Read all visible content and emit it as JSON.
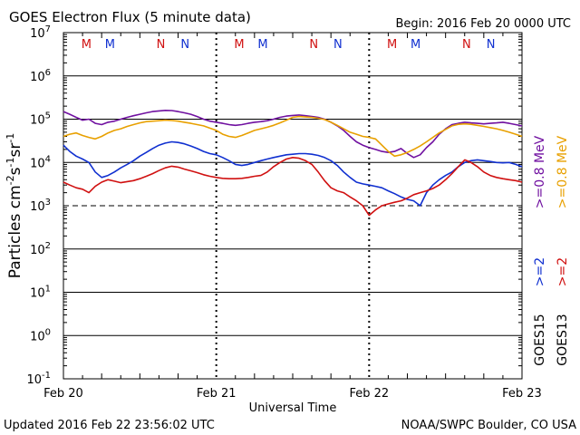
{
  "chart_data": {
    "type": "line",
    "title": "GOES Electron Flux (5 minute data)",
    "begin_label": "Begin: 2016 Feb 20 0000 UTC",
    "xlabel": "Universal Time",
    "ylabel": {
      "base": "Particles cm",
      "exp1": "-2",
      "mid1": "s",
      "exp2": "-1",
      "mid2": "sr",
      "exp3": "-1"
    },
    "x_ticks": [
      "Feb 20",
      "Feb 21",
      "Feb 22",
      "Feb 23"
    ],
    "xlim_hours": [
      0,
      72
    ],
    "y_scale": "log",
    "ylim": [
      0.1,
      10000000
    ],
    "y_tick_exponents": [
      "7",
      "6",
      "5",
      "4",
      "3",
      "2",
      "1",
      "0",
      "-1"
    ],
    "threshold": 1000,
    "footer_left": "Updated 2016 Feb 22 23:56:02 UTC",
    "footer_right": "NOAA/SWPC Boulder, CO USA",
    "mn_markers": [
      {
        "label": "M",
        "hour": 3.6,
        "color": "#d01010"
      },
      {
        "label": "M",
        "hour": 7.3,
        "color": "#1030d0"
      },
      {
        "label": "N",
        "hour": 15.3,
        "color": "#d01010"
      },
      {
        "label": "N",
        "hour": 19.1,
        "color": "#1030d0"
      },
      {
        "label": "M",
        "hour": 27.6,
        "color": "#d01010"
      },
      {
        "label": "M",
        "hour": 31.3,
        "color": "#1030d0"
      },
      {
        "label": "N",
        "hour": 39.3,
        "color": "#d01010"
      },
      {
        "label": "N",
        "hour": 43.1,
        "color": "#1030d0"
      },
      {
        "label": "M",
        "hour": 51.6,
        "color": "#d01010"
      },
      {
        "label": "M",
        "hour": 55.3,
        "color": "#1030d0"
      },
      {
        "label": "N",
        "hour": 63.3,
        "color": "#d01010"
      },
      {
        "label": "N",
        "hour": 67.1,
        "color": "#1030d0"
      }
    ],
    "legend": [
      {
        "text": ">=0.8  MeV",
        "color": "#7010a0",
        "group": "energy"
      },
      {
        "text": ">=0.8  MeV",
        "color": "#e8a000",
        "group": "energy"
      },
      {
        "text": ">=2",
        "color": "#1030d0",
        "group": "energy"
      },
      {
        "text": ">=2",
        "color": "#d01010",
        "group": "energy"
      },
      {
        "text": "GOES15",
        "color": "#000000",
        "group": "sat"
      },
      {
        "text": "GOES13",
        "color": "#000000",
        "group": "sat"
      }
    ],
    "series": [
      {
        "color": "#7010a0",
        "x": [
          0,
          1,
          2,
          3,
          4,
          5,
          6,
          7,
          8,
          9,
          10,
          11,
          12,
          13,
          14,
          15,
          16,
          17,
          18,
          19,
          20,
          21,
          22,
          23,
          24,
          25,
          26,
          27,
          28,
          29,
          30,
          31,
          32,
          33,
          34,
          35,
          36,
          37,
          38,
          39,
          40,
          41,
          42,
          43,
          44,
          45,
          46,
          47,
          48,
          49,
          50,
          51,
          52,
          53,
          54,
          55,
          56,
          57,
          58,
          59,
          60,
          61,
          62,
          63,
          64,
          65,
          66,
          67,
          68,
          69,
          70,
          71,
          72
        ],
        "y": [
          150000,
          130000,
          110000,
          95000,
          100000,
          80000,
          75000,
          85000,
          90000,
          100000,
          110000,
          120000,
          130000,
          140000,
          150000,
          155000,
          160000,
          158000,
          150000,
          140000,
          130000,
          115000,
          100000,
          90000,
          85000,
          80000,
          75000,
          72000,
          75000,
          80000,
          85000,
          88000,
          92000,
          100000,
          110000,
          118000,
          122000,
          125000,
          120000,
          115000,
          110000,
          100000,
          85000,
          70000,
          55000,
          40000,
          30000,
          25000,
          22000,
          20000,
          18000,
          17000,
          18000,
          21000,
          16000,
          13000,
          15000,
          22000,
          30000,
          45000,
          60000,
          75000,
          80000,
          85000,
          82000,
          80000,
          78000,
          80000,
          82000,
          85000,
          80000,
          75000,
          70000
        ]
      },
      {
        "color": "#e8a000",
        "x": [
          0,
          1,
          2,
          3,
          4,
          5,
          6,
          7,
          8,
          9,
          10,
          11,
          12,
          13,
          14,
          15,
          16,
          17,
          18,
          19,
          20,
          21,
          22,
          23,
          24,
          25,
          26,
          27,
          28,
          29,
          30,
          31,
          32,
          33,
          34,
          35,
          36,
          37,
          38,
          39,
          40,
          41,
          42,
          43,
          44,
          45,
          46,
          47,
          48,
          49,
          50,
          51,
          52,
          53,
          54,
          55,
          56,
          57,
          58,
          59,
          60,
          61,
          62,
          63,
          64,
          65,
          66,
          67,
          68,
          69,
          70,
          71,
          72
        ],
        "y": [
          40000,
          45000,
          48000,
          42000,
          38000,
          35000,
          40000,
          48000,
          55000,
          60000,
          68000,
          75000,
          82000,
          88000,
          90000,
          92000,
          95000,
          93000,
          90000,
          85000,
          80000,
          75000,
          70000,
          62000,
          55000,
          45000,
          40000,
          38000,
          42000,
          48000,
          55000,
          60000,
          65000,
          72000,
          82000,
          95000,
          110000,
          115000,
          112000,
          110000,
          105000,
          98000,
          85000,
          72000,
          60000,
          50000,
          45000,
          40000,
          38000,
          35000,
          25000,
          18000,
          14000,
          15000,
          17000,
          20000,
          24000,
          30000,
          38000,
          48000,
          58000,
          70000,
          76000,
          78000,
          76000,
          72000,
          68000,
          64000,
          60000,
          55000,
          50000,
          45000,
          40000
        ]
      },
      {
        "color": "#1030d0",
        "x": [
          0,
          1,
          2,
          3,
          4,
          5,
          6,
          7,
          8,
          9,
          10,
          11,
          12,
          13,
          14,
          15,
          16,
          17,
          18,
          19,
          20,
          21,
          22,
          23,
          24,
          25,
          26,
          27,
          28,
          29,
          30,
          31,
          32,
          33,
          34,
          35,
          36,
          37,
          38,
          39,
          40,
          41,
          42,
          43,
          44,
          45,
          46,
          47,
          48,
          49,
          50,
          51,
          52,
          53,
          54,
          55,
          56,
          57,
          58,
          59,
          60,
          61,
          62,
          63,
          64,
          65,
          66,
          67,
          68,
          69,
          70,
          71,
          72
        ],
        "y": [
          25000,
          18000,
          14000,
          12000,
          10000,
          6000,
          4500,
          5000,
          6000,
          7500,
          9000,
          11000,
          14000,
          17000,
          21000,
          25000,
          28000,
          30000,
          29000,
          27000,
          24000,
          21000,
          18000,
          16000,
          15000,
          13000,
          11000,
          9000,
          8500,
          9000,
          10000,
          11000,
          12000,
          13000,
          14000,
          15000,
          15500,
          16000,
          16000,
          15500,
          14500,
          13000,
          11000,
          8500,
          6000,
          4500,
          3500,
          3200,
          3000,
          2800,
          2600,
          2200,
          1900,
          1600,
          1400,
          1300,
          1000,
          2000,
          3000,
          4000,
          5000,
          6000,
          8000,
          10000,
          11000,
          11500,
          11000,
          10500,
          10000,
          9800,
          10000,
          9000,
          8000
        ]
      },
      {
        "color": "#d01010",
        "x": [
          0,
          1,
          2,
          3,
          4,
          5,
          6,
          7,
          8,
          9,
          10,
          11,
          12,
          13,
          14,
          15,
          16,
          17,
          18,
          19,
          20,
          21,
          22,
          23,
          24,
          25,
          26,
          27,
          28,
          29,
          30,
          31,
          32,
          33,
          34,
          35,
          36,
          37,
          38,
          39,
          40,
          41,
          42,
          43,
          44,
          45,
          46,
          47,
          48,
          49,
          50,
          51,
          52,
          53,
          54,
          55,
          56,
          57,
          58,
          59,
          60,
          61,
          62,
          63,
          64,
          65,
          66,
          67,
          68,
          69,
          70,
          71,
          72
        ],
        "y": [
          3500,
          3000,
          2600,
          2400,
          2000,
          2800,
          3500,
          4000,
          3700,
          3400,
          3600,
          3800,
          4200,
          4800,
          5500,
          6500,
          7500,
          8200,
          7800,
          7000,
          6400,
          5800,
          5200,
          4800,
          4500,
          4300,
          4200,
          4200,
          4300,
          4500,
          4800,
          5000,
          6000,
          8000,
          10000,
          12000,
          13000,
          12500,
          11000,
          9000,
          6000,
          3800,
          2600,
          2200,
          2000,
          1600,
          1300,
          1000,
          600,
          800,
          1000,
          1100,
          1200,
          1300,
          1500,
          1800,
          2000,
          2200,
          2500,
          3000,
          4000,
          5500,
          8000,
          11500,
          10000,
          8000,
          6000,
          5000,
          4500,
          4200,
          4000,
          3800,
          3500
        ]
      }
    ]
  }
}
